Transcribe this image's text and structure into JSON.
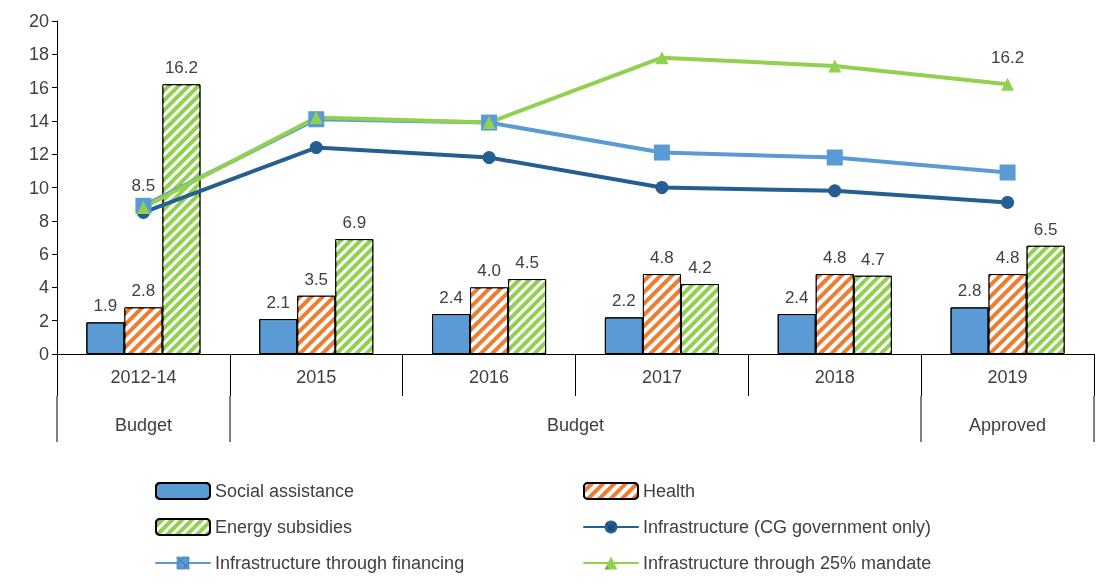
{
  "chart_data": {
    "type": "bar",
    "categories": [
      "2012-14",
      "2015",
      "2016",
      "2017",
      "2018",
      "2019"
    ],
    "ylim": [
      0,
      20
    ],
    "yticks": [
      0,
      2,
      4,
      6,
      8,
      10,
      12,
      14,
      16,
      18,
      20
    ],
    "grid": false,
    "legend": "bottom",
    "annotations": [
      "Budget",
      "Budget",
      "Approved"
    ],
    "series": [
      {
        "name": "Social assistance",
        "color": "#5b9bd5",
        "values": [
          1.9,
          2.1,
          2.4,
          2.2,
          2.4,
          2.8
        ],
        "value_labels": [
          "1.9",
          "2.1",
          "2.4",
          "2.2",
          "2.4",
          "2.8"
        ]
      },
      {
        "name": "Health",
        "color": "#ed7d31",
        "values": [
          2.8,
          3.5,
          4.0,
          4.8,
          4.8,
          4.8
        ],
        "value_labels": [
          "2.8",
          "3.5",
          "4.0",
          "4.8",
          "4.8",
          "4.8"
        ]
      },
      {
        "name": "Energy subsidies",
        "color": "#92d050",
        "values": [
          16.2,
          6.9,
          4.5,
          4.2,
          4.7,
          6.5
        ],
        "value_labels": [
          "16.2",
          "6.9",
          "4.5",
          "4.2",
          "4.7",
          "6.5"
        ]
      },
      {
        "name": "Infrastructure (CG government only)",
        "type": "line",
        "marker": "circle",
        "color": "#255e91",
        "values": [
          8.5,
          12.4,
          11.8,
          10.0,
          9.8,
          9.1
        ],
        "value_labels": [
          "8.5",
          null,
          null,
          null,
          null,
          null
        ]
      },
      {
        "name": "Infrastructure through financing",
        "type": "line",
        "marker": "square",
        "color": "#5b9bd5",
        "values": [
          8.9,
          14.1,
          13.9,
          12.1,
          11.8,
          10.9
        ]
      },
      {
        "name": "Infrastructure through 25% mandate",
        "type": "line",
        "marker": "triangle",
        "color": "#92d050",
        "values": [
          8.8,
          14.2,
          13.9,
          17.8,
          17.3,
          16.2
        ],
        "value_labels": [
          null,
          null,
          null,
          null,
          null,
          "16.2"
        ]
      }
    ]
  }
}
